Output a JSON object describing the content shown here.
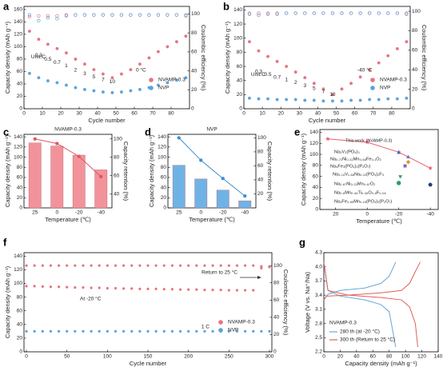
{
  "chart_data": [
    {
      "label": "a",
      "type": "line",
      "xlabel": "Cycle number",
      "ylabel": "Capacity density (mAh g⁻¹)",
      "y2label": "Coulombic efficiency (%)",
      "xlim": [
        0,
        90
      ],
      "xticks": [
        0,
        10,
        20,
        30,
        40,
        50,
        60,
        70,
        80
      ],
      "ylim": [
        0,
        165
      ],
      "yticks": [
        0,
        20,
        40,
        60,
        80,
        100,
        120,
        140,
        160
      ],
      "y2lim": [
        0,
        108
      ],
      "y2ticks": [
        0,
        20,
        40,
        60,
        80,
        100
      ],
      "x": [
        3,
        8,
        13,
        18,
        23,
        28,
        33,
        38,
        43,
        48,
        53,
        58,
        63,
        68,
        73,
        78,
        83,
        88
      ],
      "series": [
        {
          "name": "NVAMP-0.3",
          "color": "#e8737f",
          "marker": "circle",
          "values": [
            125,
            112,
            104,
            97,
            90,
            80,
            72,
            63,
            56,
            50,
            56,
            63,
            72,
            82,
            92,
            100,
            108,
            117
          ]
        },
        {
          "name": "NVP",
          "color": "#5aa3dc",
          "marker": "circle",
          "values": [
            57,
            50,
            45,
            42,
            38,
            34,
            31,
            29,
            27,
            26,
            27,
            29,
            31,
            34,
            38,
            42,
            46,
            50
          ]
        },
        {
          "color": "#e8737f",
          "marker": "open-circle",
          "axis": "y2",
          "values": [
            97,
            98,
            98,
            98,
            99,
            99,
            99,
            99,
            99,
            99,
            99,
            99,
            99,
            99,
            99,
            99,
            99,
            98
          ]
        },
        {
          "color": "#5aa3dc",
          "marker": "open-circle",
          "axis": "y2",
          "values": [
            99,
            93,
            96,
            95,
            98,
            99,
            99,
            99,
            99,
            99,
            99,
            99,
            99,
            99,
            99,
            99,
            99,
            99
          ]
        }
      ],
      "rates": [
        "0.3",
        "0.5",
        "0.7",
        "1",
        "2",
        "3",
        "5",
        "7",
        "10"
      ],
      "unit": "Unit:C",
      "annotations": [
        "0 °C"
      ],
      "legend": "center right"
    },
    {
      "label": "b",
      "type": "line",
      "xlabel": "Cycle number",
      "ylabel": "Capacity density (mAh g⁻¹)",
      "y2label": "Coulombic efficiency (%)",
      "xlim": [
        0,
        90
      ],
      "xticks": [
        0,
        10,
        20,
        30,
        40,
        50,
        60,
        70,
        80
      ],
      "ylim": [
        0,
        145
      ],
      "yticks": [
        0,
        20,
        40,
        60,
        80,
        100,
        120,
        140
      ],
      "y2lim": [
        0,
        105
      ],
      "y2ticks": [
        0,
        20,
        40,
        60,
        80,
        100
      ],
      "x": [
        3,
        8,
        13,
        18,
        23,
        28,
        33,
        38,
        43,
        48,
        53,
        58,
        63,
        68,
        73,
        78,
        83,
        88
      ],
      "series": [
        {
          "name": "NVAMP-0.3",
          "color": "#e8737f",
          "marker": "circle",
          "values": [
            95,
            82,
            74,
            67,
            60,
            52,
            44,
            36,
            28,
            20,
            28,
            36,
            45,
            55,
            65,
            75,
            85,
            95
          ]
        },
        {
          "name": "NVP",
          "color": "#5aa3dc",
          "marker": "circle",
          "values": [
            15,
            14,
            14,
            13,
            13,
            13,
            12,
            12,
            11,
            11,
            11,
            12,
            12,
            13,
            13,
            14,
            14,
            15
          ]
        },
        {
          "color": "#e8737f",
          "marker": "open-circle",
          "axis": "y2",
          "values": [
            98,
            98,
            98,
            98,
            98,
            98,
            98,
            98,
            98,
            98,
            98,
            98,
            98,
            98,
            98,
            98,
            98,
            98
          ]
        },
        {
          "color": "#5aa3dc",
          "marker": "open-circle",
          "axis": "y2",
          "values": [
            97,
            96,
            97,
            97,
            98,
            98,
            98,
            98,
            98,
            98,
            98,
            98,
            98,
            98,
            98,
            98,
            98,
            97
          ]
        }
      ],
      "rates": [
        "0.3",
        "0.5",
        "0.7",
        "1",
        "2",
        "3",
        "5",
        "7",
        "10"
      ],
      "unit": "Unit:C",
      "annotations": [
        "-40 °C"
      ],
      "legend": "center right"
    },
    {
      "label": "c",
      "type": "bar",
      "xlabel": "Temperature (℃)",
      "ylabel": "Capacity density (mAh g⁻¹)",
      "y2label": "Capacity retention (%)",
      "categories": [
        "25",
        "0",
        "-20",
        "-40"
      ],
      "ylim": [
        0,
        145
      ],
      "yticks": [
        0,
        20,
        40,
        60,
        80,
        100,
        120,
        140
      ],
      "y2lim": [
        25,
        105
      ],
      "y2ticks": [
        40,
        60,
        80,
        100
      ],
      "series": [
        {
          "color": "#f2939b",
          "style": "bar",
          "values": [
            128,
            122,
            104,
            75
          ]
        },
        {
          "color": "#e05563",
          "axis": "y2",
          "marker": "circle",
          "line": true,
          "values": [
            100,
            95,
            81,
            59
          ]
        }
      ],
      "annotations": [
        "NVAMP-0.3"
      ]
    },
    {
      "label": "d",
      "type": "bar",
      "xlabel": "Temperature (℃)",
      "ylabel": "Capacity density (mAh g⁻¹)",
      "y2label": "Capacity retention (%)",
      "categories": [
        "25",
        "0",
        "-20",
        "-40"
      ],
      "ylim": [
        0,
        145
      ],
      "yticks": [
        0,
        20,
        40,
        60,
        80,
        100,
        120,
        140
      ],
      "y2lim": [
        0,
        105
      ],
      "y2ticks": [
        20,
        40,
        60,
        80,
        100
      ],
      "series": [
        {
          "color": "#6fb3e6",
          "style": "bar",
          "values": [
            84,
            57,
            35,
            14
          ]
        },
        {
          "color": "#3f8fd0",
          "axis": "y2",
          "marker": "circle",
          "line": true,
          "values": [
            100,
            68,
            42,
            17
          ]
        }
      ],
      "annotations": [
        "NVP"
      ]
    },
    {
      "label": "e",
      "type": "scatter",
      "xlabel": "Temperature (℃)",
      "ylabel": "Capacity density (mAh g⁻¹)",
      "xlim": [
        30,
        -45
      ],
      "xticks": [
        20,
        0,
        -20,
        -40
      ],
      "ylim": [
        0,
        145
      ],
      "yticks": [
        0,
        20,
        40,
        60,
        80,
        100,
        120,
        140
      ],
      "series": [
        {
          "name": "This work (NVAMP-0.3)",
          "color": "#e8606d",
          "marker": "star",
          "line": true,
          "x": [
            25,
            0,
            -20,
            -40
          ],
          "values": [
            128,
            122,
            104,
            75
          ]
        },
        {
          "name": "Na₃V₂(PO₄)₃",
          "color": "#3b6fb6",
          "marker": "triangle",
          "x": [
            -20
          ],
          "values": [
            103
          ]
        },
        {
          "name": "Na₀.₇₂Ni₀.₃₂Mn₀.₆₈Fe₀.₁O₂",
          "color": "#6f6fc0",
          "marker": "triangle",
          "x": [
            -26
          ],
          "values": [
            95
          ]
        },
        {
          "name": "Na₄Fe₃(PO₄)₂(P₂O₇)",
          "color": "#d79a2b",
          "marker": "diamond",
          "x": [
            -26
          ],
          "values": [
            86
          ]
        },
        {
          "name": "Na₃.₁₄V₁.₈₈Na₀.₁₂(PO₄)₂F₃",
          "color": "#8a5fc4",
          "marker": "square",
          "x": [
            -24
          ],
          "values": [
            79
          ]
        },
        {
          "name": "Na₀.₆₇Ni₀.₃₃Mn₀.₆₇O₂",
          "color": "#22a858",
          "marker": "down-triangle",
          "x": [
            -21
          ],
          "values": [
            60
          ]
        },
        {
          "name": "Na₀.₆Mn₀.₄₆Ti₀.₃₆O₀.₈F₀.₀₆",
          "color": "#2d9b6a",
          "marker": "circle",
          "x": [
            -20
          ],
          "values": [
            48
          ]
        },
        {
          "name": "Na₄Fe₂.₈₅Mn₀.₁₅(PO₄)₂(P₂O₇)",
          "color": "#2b3a78",
          "marker": "pentagon",
          "x": [
            -40
          ],
          "values": [
            45
          ]
        }
      ]
    },
    {
      "label": "f",
      "type": "line",
      "xlabel": "Cycle number",
      "ylabel": "Capacity density (mAh g⁻¹)",
      "y2label": "Coulombic efficiency (%)",
      "xlim": [
        -3,
        303
      ],
      "xticks": [
        0,
        50,
        100,
        150,
        200,
        250,
        300
      ],
      "ylim": [
        0,
        145
      ],
      "yticks": [
        0,
        20,
        40,
        60,
        80,
        100,
        120,
        140
      ],
      "y2lim": [
        0,
        115
      ],
      "y2ticks": [
        0,
        20,
        40,
        60,
        80,
        100
      ],
      "x": [
        0,
        10,
        20,
        30,
        40,
        50,
        60,
        70,
        80,
        90,
        100,
        110,
        120,
        130,
        140,
        150,
        160,
        170,
        180,
        190,
        200,
        210,
        220,
        230,
        240,
        250,
        260,
        270,
        280,
        290,
        300
      ],
      "series": [
        {
          "color": "#e8737f",
          "marker": "circle",
          "axis": "y2",
          "values": [
            100,
            100,
            100,
            100,
            100,
            100,
            100,
            100,
            100,
            100,
            100,
            100,
            100,
            100,
            100,
            100,
            100,
            100,
            100,
            100,
            100,
            100,
            100,
            100,
            100,
            100,
            100,
            100,
            100,
            97,
            99
          ]
        },
        {
          "name": "NVAMP-0.3",
          "color": "#e8737f",
          "marker": "circle",
          "values": [
            96,
            96,
            95.5,
            95,
            95,
            94.5,
            94,
            94,
            93.5,
            93.5,
            93,
            93,
            92.5,
            92.5,
            92,
            92,
            92,
            91.5,
            91.5,
            91,
            91,
            91,
            90.5,
            90.5,
            90.5,
            90,
            90,
            90,
            90,
            125,
            124
          ]
        },
        {
          "name": "NVP",
          "color": "#5aa3dc",
          "marker": "circle",
          "values": [
            30,
            30,
            30,
            30,
            30,
            30,
            30,
            30,
            30,
            30,
            30,
            30,
            30,
            30,
            30,
            30,
            30,
            30,
            30,
            30,
            30,
            30,
            30,
            30,
            30,
            30,
            30,
            30,
            30,
            30,
            30
          ]
        }
      ],
      "annotations": [
        "At -20 °C",
        "Return to 25 °C",
        "1 C"
      ],
      "legend": "center right"
    },
    {
      "label": "g",
      "type": "line",
      "xlabel": "Capacity density (mAh g⁻¹)",
      "ylabel": "Voltage (V vs. Na⁺/Na)",
      "xlim": [
        0,
        140
      ],
      "xticks": [
        0,
        20,
        40,
        60,
        80,
        100,
        120,
        140
      ],
      "ylim": [
        2.2,
        4.3
      ],
      "yticks": [
        2.2,
        2.5,
        2.8,
        3.1,
        3.4,
        3.7,
        {
          "value": 4,
          "label": "4.0"
        },
        4.3
      ],
      "series": [
        {
          "name": "280 th (at -20 °C)",
          "color": "#6aa7d8",
          "line": true,
          "x": [
            0,
            5,
            20,
            50,
            70,
            80,
            88
          ],
          "values": [
            3.3,
            3.42,
            3.5,
            3.55,
            3.65,
            3.8,
            4.1
          ]
        },
        {
          "color": "#6aa7d8",
          "line": true,
          "x": [
            0,
            5,
            20,
            50,
            70,
            80,
            88
          ],
          "values": [
            4.1,
            3.5,
            3.38,
            3.3,
            3.2,
            3.05,
            2.3
          ]
        },
        {
          "name": "300 th (Return to 25 °C)",
          "color": "#e0605a",
          "line": true,
          "x": [
            0,
            3,
            30,
            70,
            95,
            105,
            112,
            118
          ],
          "values": [
            3.3,
            3.38,
            3.4,
            3.45,
            3.5,
            3.65,
            3.9,
            4.1
          ]
        },
        {
          "color": "#e0605a",
          "line": true,
          "x": [
            0,
            5,
            30,
            70,
            95,
            105,
            112,
            115
          ],
          "values": [
            4.1,
            3.5,
            3.4,
            3.35,
            3.3,
            3.15,
            2.8,
            2.3
          ]
        }
      ],
      "annotations": [
        "NVAMP-0.3"
      ],
      "legend": "lower left"
    }
  ]
}
